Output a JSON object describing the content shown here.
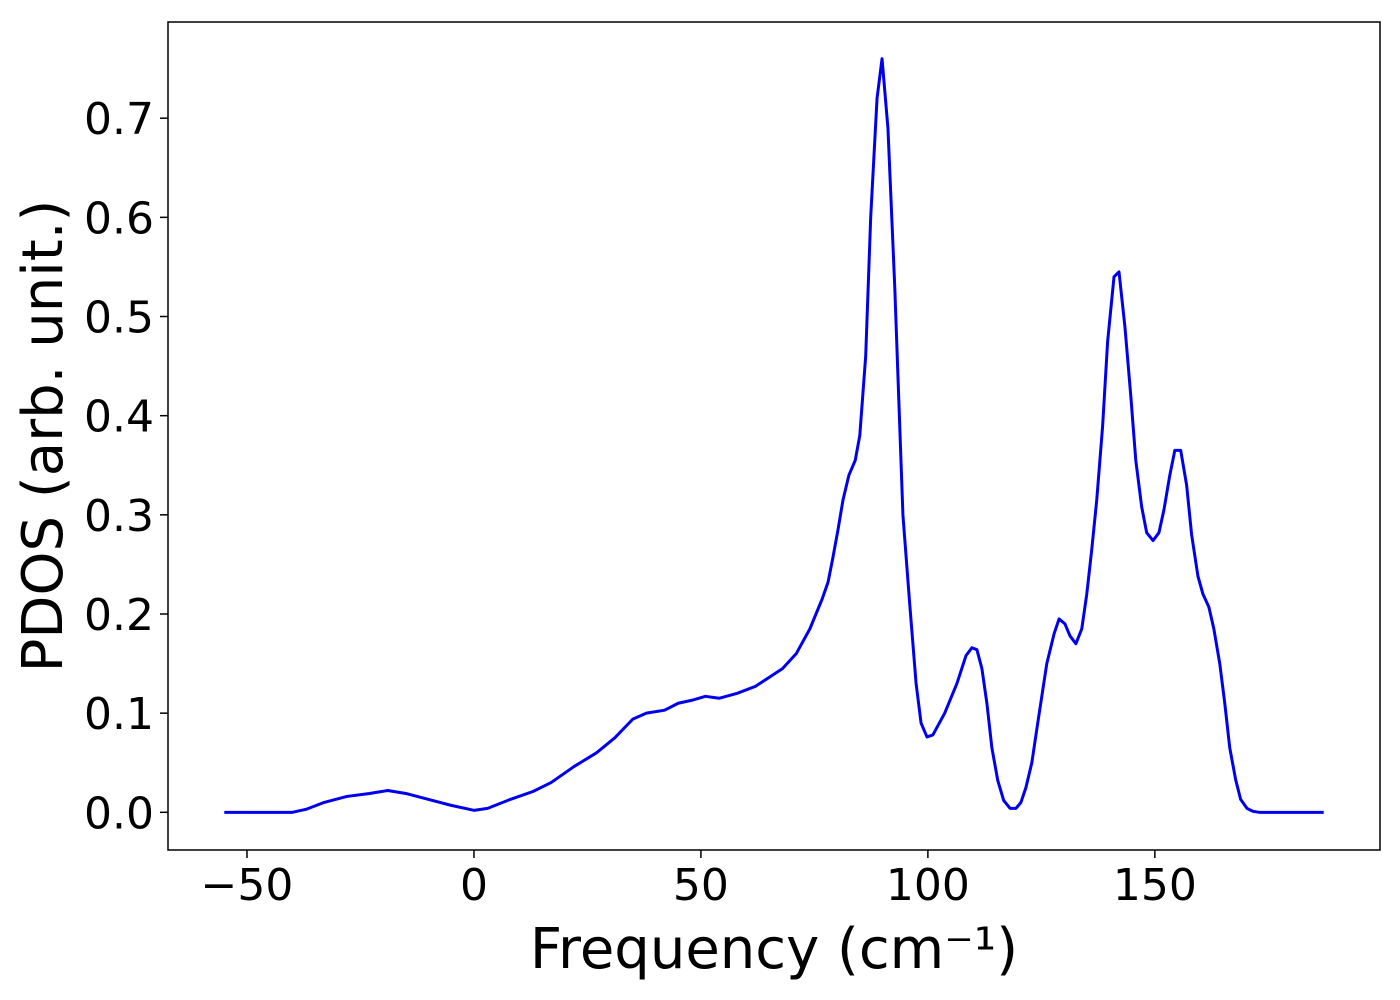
{
  "chart_data": {
    "type": "line",
    "xlabel": "Frequency (cm⁻¹)",
    "ylabel": "PDOS (arb. unit.)",
    "x": [
      -55,
      -40,
      -37,
      -33,
      -28,
      -23,
      -19,
      -15,
      -10,
      -5,
      0,
      3,
      8,
      13,
      17,
      22,
      27,
      31,
      35,
      38,
      42,
      45,
      48,
      51,
      54,
      58,
      62,
      66,
      68,
      71,
      74,
      76.7,
      78,
      79,
      80.2,
      81.3,
      82.6,
      84,
      85,
      86.3,
      87.4,
      88.8,
      89.9,
      91.2,
      92.7,
      94.5,
      96,
      97.4,
      98.5,
      99.8,
      101.1,
      103.7,
      106.4,
      108.4,
      109.7,
      110.8,
      111.9,
      113,
      114.1,
      115.4,
      116.7,
      118.1,
      119.4,
      120.5,
      121.6,
      122.9,
      124.2,
      126.2,
      127.8,
      128.9,
      130.2,
      131.3,
      132.6,
      133.9,
      135,
      136.1,
      137.2,
      138.5,
      139.6,
      141,
      142.1,
      143.4,
      144.7,
      145.8,
      147.1,
      148.2,
      149.6,
      150.9,
      152,
      153.3,
      154.4,
      155.7,
      157,
      158.1,
      159.5,
      160.6,
      161.9,
      163,
      164.3,
      165.4,
      166.5,
      167.8,
      168.9,
      170.3,
      171.6,
      173,
      187.2
    ],
    "series": [
      {
        "color": "#0000ee",
        "values": [
          0,
          0,
          0.003,
          0.01,
          0.016,
          0.019,
          0.022,
          0.019,
          0.013,
          0.007,
          0.002,
          0.004,
          0.013,
          0.021,
          0.03,
          0.046,
          0.06,
          0.075,
          0.094,
          0.1,
          0.103,
          0.11,
          0.113,
          0.117,
          0.115,
          0.12,
          0.127,
          0.139,
          0.145,
          0.16,
          0.185,
          0.215,
          0.232,
          0.255,
          0.285,
          0.315,
          0.34,
          0.355,
          0.38,
          0.46,
          0.6,
          0.72,
          0.76,
          0.69,
          0.53,
          0.3,
          0.21,
          0.13,
          0.09,
          0.076,
          0.078,
          0.1,
          0.13,
          0.158,
          0.166,
          0.164,
          0.145,
          0.11,
          0.065,
          0.032,
          0.012,
          0.004,
          0.004,
          0.01,
          0.025,
          0.05,
          0.09,
          0.15,
          0.18,
          0.195,
          0.19,
          0.178,
          0.17,
          0.185,
          0.22,
          0.265,
          0.315,
          0.39,
          0.475,
          0.54,
          0.545,
          0.49,
          0.42,
          0.355,
          0.308,
          0.282,
          0.274,
          0.282,
          0.305,
          0.34,
          0.365,
          0.365,
          0.33,
          0.28,
          0.238,
          0.22,
          0.207,
          0.185,
          0.15,
          0.11,
          0.065,
          0.033,
          0.013,
          0.004,
          0.001,
          0,
          0
        ]
      }
    ],
    "xlim": [
      -67.4,
      199.6
    ],
    "ylim": [
      -0.038,
      0.797
    ],
    "xticks": [
      {
        "value": -50,
        "label": "−50"
      },
      0,
      50,
      100,
      150
    ],
    "yticks": [
      {
        "value": 0,
        "label": "0.0"
      },
      {
        "value": 0.1,
        "label": "0.1"
      },
      {
        "value": 0.2,
        "label": "0.2"
      },
      {
        "value": 0.3,
        "label": "0.3"
      },
      {
        "value": 0.4,
        "label": "0.4"
      },
      {
        "value": 0.5,
        "label": "0.5"
      },
      {
        "value": 0.6,
        "label": "0.6"
      },
      {
        "value": 0.7,
        "label": "0.7"
      }
    ],
    "grid": false
  }
}
